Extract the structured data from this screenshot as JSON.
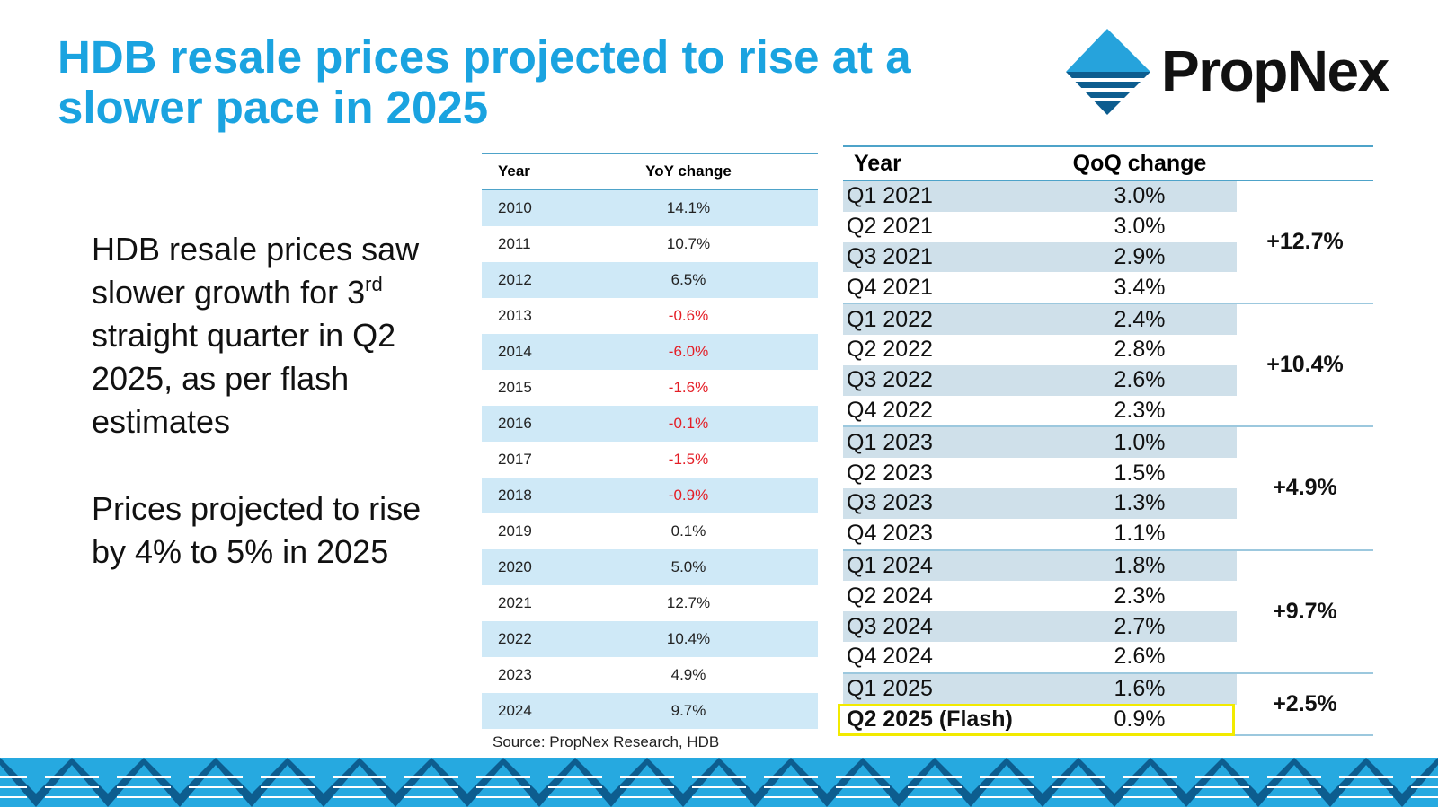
{
  "slide": {
    "title": "HDB resale prices projected to rise at a slower pace in 2025"
  },
  "logo": {
    "text": "PropNex",
    "colors": {
      "mark_light": "#26a3dc",
      "mark_dark": "#0d5d8f"
    }
  },
  "body": {
    "para1_a": "HDB resale prices saw slower growth for 3",
    "para1_sup": "rd",
    "para1_b": " straight quarter in Q2 2025, as per flash estimates",
    "para2": "Prices projected to rise by 4% to 5% in 2025"
  },
  "yoy_table": {
    "headers": [
      "Year",
      "YoY change"
    ],
    "rows": [
      {
        "year": "2010",
        "change": "14.1%",
        "negative": false
      },
      {
        "year": "2011",
        "change": "10.7%",
        "negative": false
      },
      {
        "year": "2012",
        "change": "6.5%",
        "negative": false
      },
      {
        "year": "2013",
        "change": "-0.6%",
        "negative": true
      },
      {
        "year": "2014",
        "change": "-6.0%",
        "negative": true
      },
      {
        "year": "2015",
        "change": "-1.6%",
        "negative": true
      },
      {
        "year": "2016",
        "change": "-0.1%",
        "negative": true
      },
      {
        "year": "2017",
        "change": "-1.5%",
        "negative": true
      },
      {
        "year": "2018",
        "change": "-0.9%",
        "negative": true
      },
      {
        "year": "2019",
        "change": "0.1%",
        "negative": false
      },
      {
        "year": "2020",
        "change": "5.0%",
        "negative": false
      },
      {
        "year": "2021",
        "change": "12.7%",
        "negative": false
      },
      {
        "year": "2022",
        "change": "10.4%",
        "negative": false
      },
      {
        "year": "2023",
        "change": "4.9%",
        "negative": false
      },
      {
        "year": "2024",
        "change": "9.7%",
        "negative": false
      }
    ],
    "source": "Source: PropNex Research, HDB"
  },
  "qoq_table": {
    "headers": [
      "Year",
      "QoQ change"
    ],
    "groups": [
      {
        "total": "+12.7%",
        "rows": [
          {
            "quarter": "Q1 2021",
            "change": "3.0%"
          },
          {
            "quarter": "Q2 2021",
            "change": "3.0%"
          },
          {
            "quarter": "Q3 2021",
            "change": "2.9%"
          },
          {
            "quarter": "Q4 2021",
            "change": "3.4%"
          }
        ]
      },
      {
        "total": "+10.4%",
        "rows": [
          {
            "quarter": "Q1 2022",
            "change": "2.4%"
          },
          {
            "quarter": "Q2 2022",
            "change": "2.8%"
          },
          {
            "quarter": "Q3 2022",
            "change": "2.6%"
          },
          {
            "quarter": "Q4 2022",
            "change": "2.3%"
          }
        ]
      },
      {
        "total": "+4.9%",
        "rows": [
          {
            "quarter": "Q1 2023",
            "change": "1.0%"
          },
          {
            "quarter": "Q2 2023",
            "change": "1.5%"
          },
          {
            "quarter": "Q3 2023",
            "change": "1.3%"
          },
          {
            "quarter": "Q4 2023",
            "change": "1.1%"
          }
        ]
      },
      {
        "total": "+9.7%",
        "rows": [
          {
            "quarter": "Q1 2024",
            "change": "1.8%"
          },
          {
            "quarter": "Q2 2024",
            "change": "2.3%"
          },
          {
            "quarter": "Q3 2024",
            "change": "2.7%"
          },
          {
            "quarter": "Q4 2024",
            "change": "2.6%"
          }
        ]
      },
      {
        "total": "+2.5%",
        "rows": [
          {
            "quarter": "Q1 2025",
            "change": "1.6%"
          },
          {
            "quarter": "Q2 2025 (Flash)",
            "change": "0.9%",
            "highlight": true
          }
        ]
      }
    ]
  },
  "colors": {
    "title": "#1aa3e0",
    "negative": "#e41e26",
    "yoy_shade": "#cfe9f7",
    "qoq_shade": "#cfe0ea",
    "highlight_box": "#f2ea00",
    "pattern_light": "#26a9e0",
    "pattern_dark": "#0d5d8f"
  }
}
